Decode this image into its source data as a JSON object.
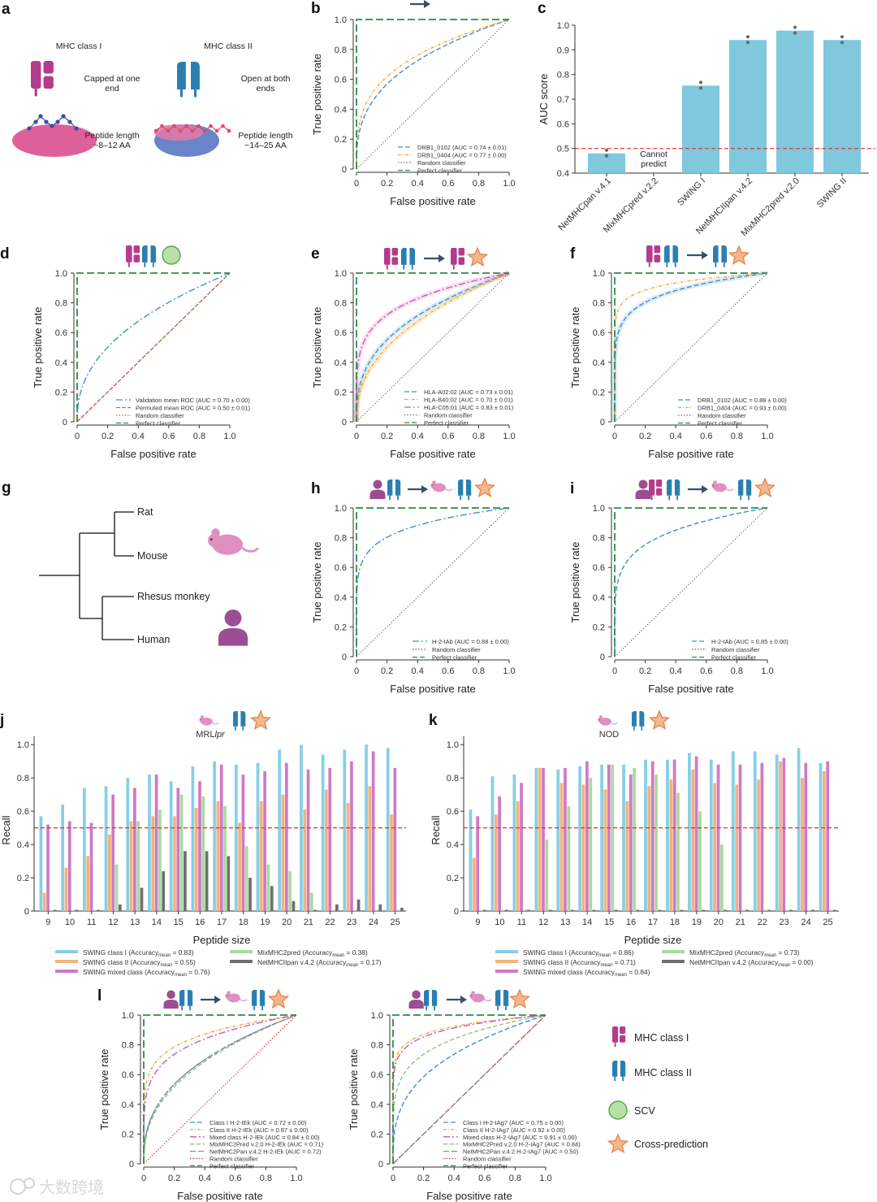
{
  "colors": {
    "classI": "#b43c8c",
    "classII": "#2b7fb0",
    "arrow": "#3d4f66",
    "star_fill": "#f6b58a",
    "star_stroke": "#e08a52",
    "scv_fill": "#b8e0a6",
    "scv_stroke": "#5aa34a",
    "mouse": "#e08fc2",
    "human": "#9c4d93",
    "random": "#777777",
    "perfect": "#2f8a4a",
    "threshold": "#e03030",
    "bar_c": "#7fc8dd",
    "barI": "#86cfe6",
    "barII": "#f3b27a",
    "barMixed": "#cf79c5",
    "barMix2": "#a8dba0",
    "barNet": "#6f6f6f"
  },
  "axis_text": {
    "tpr": "True positive rate",
    "fpr": "False positive rate",
    "auc_score": "AUC score",
    "recall": "Recall",
    "peptide_size": "Peptide size",
    "roc_ticks": [
      "0",
      "0.2",
      "0.4",
      "0.6",
      "0.8",
      "1.0"
    ],
    "auc_ticks": [
      "0.4",
      "0.5",
      "0.6",
      "0.7",
      "0.8",
      "0.9",
      "1.0"
    ]
  },
  "panel_a": {
    "label": "a",
    "class1_title": "MHC class I",
    "class1_desc": "Capped at one end",
    "class1_len": "Peptide length ~8–12 AA",
    "class2_title": "MHC class II",
    "class2_desc": "Open at both ends",
    "class2_len": "Peptide length ~14–25 AA"
  },
  "panel_g": {
    "label": "g",
    "leaves": [
      "Rat",
      "Mouse",
      "Rhesus monkey",
      "Human"
    ]
  },
  "key": {
    "mhc1": "MHC class I",
    "mhc2": "MHC class II",
    "scv": "SCV",
    "cross": "Cross-prediction"
  },
  "watermark": "大数跨境",
  "chart_data": [
    {
      "id": "b",
      "label": "b",
      "type": "line",
      "xlabel": "False positive rate",
      "ylabel": "True positive rate",
      "xlim": [
        0,
        1
      ],
      "ylim": [
        0,
        1
      ],
      "series": [
        {
          "name": "DRB1_0102 (AUC = 0.74 ± 0.01)",
          "auc": 0.74,
          "color": "#3d8fd0",
          "dash": "6,3"
        },
        {
          "name": "DRB1_0404 (AUC = 0.77 ± 0.00)",
          "auc": 0.77,
          "color": "#f5a623",
          "dash": "4,2,1,2"
        },
        {
          "name": "Random classifier",
          "ref": "random"
        },
        {
          "name": "Perfect classifier",
          "ref": "perfect"
        }
      ]
    },
    {
      "id": "c",
      "label": "c",
      "type": "bar",
      "ylabel": "AUC score",
      "ylim": [
        0.4,
        1.0
      ],
      "threshold": 0.5,
      "categories": [
        "NetMHCpan v.4.1",
        "MixMHCpred v.2.2",
        "SWING I",
        "NetMHCIIpan v.4.2",
        "MixMHC2pred v.2.0",
        "SWING II"
      ],
      "values": [
        0.48,
        null,
        0.755,
        0.94,
        0.978,
        0.94
      ],
      "annotation": "Cannot predict"
    },
    {
      "id": "d",
      "label": "d",
      "type": "line",
      "xlabel": "False positive rate",
      "ylabel": "True positive rate",
      "xlim": [
        0,
        1
      ],
      "ylim": [
        0,
        1
      ],
      "series": [
        {
          "name": "Validation mean ROC (AUC = 0.70 ± 0.00)",
          "auc": 0.7,
          "color": "#3d8fd0",
          "dash": "8,3,2,3"
        },
        {
          "name": "Permuted mean ROC (AUC = 0.50 ± 0.01)",
          "auc": 0.5,
          "color": "#d9673c",
          "dash": "5,2"
        },
        {
          "name": "Random classifier",
          "ref": "random"
        },
        {
          "name": "Perfect classifier",
          "ref": "perfect"
        }
      ]
    },
    {
      "id": "e",
      "label": "e",
      "type": "line",
      "xlabel": "False positive rate",
      "ylabel": "True positive rate",
      "xlim": [
        0,
        1
      ],
      "ylim": [
        0,
        1
      ],
      "series": [
        {
          "name": "HLA-A02:02 (AUC = 0.73 ± 0.01)",
          "auc": 0.73,
          "color": "#3d8fd0",
          "dash": "6,3"
        },
        {
          "name": "HLA-B40:02 (AUC = 0.70 ± 0.01)",
          "auc": 0.7,
          "color": "#f5a623",
          "dash": "4,2,1,2"
        },
        {
          "name": "HLA-C05:01 (AUC = 0.83 ± 0.01)",
          "auc": 0.83,
          "color": "#d955b5",
          "dash": "8,3,2,3"
        },
        {
          "name": "Random classifier",
          "ref": "random"
        },
        {
          "name": "Perfect classifier",
          "ref": "perfect"
        }
      ]
    },
    {
      "id": "f",
      "label": "f",
      "type": "line",
      "xlabel": "False positive rate",
      "ylabel": "True positive rate",
      "xlim": [
        0,
        1
      ],
      "ylim": [
        0,
        1
      ],
      "series": [
        {
          "name": "DRB1_0102 (AUC = 0.88 ± 0.00)",
          "auc": 0.88,
          "color": "#3d8fd0",
          "dash": "6,3"
        },
        {
          "name": "DRB1_0404 (AUC = 0.93 ± 0.00)",
          "auc": 0.93,
          "color": "#f5a623",
          "dash": "4,2,1,2"
        },
        {
          "name": "Random classifier",
          "ref": "random"
        },
        {
          "name": "Perfect classifier",
          "ref": "perfect"
        }
      ]
    },
    {
      "id": "h",
      "label": "h",
      "type": "line",
      "xlabel": "False positive rate",
      "ylabel": "True positive rate",
      "xlim": [
        0,
        1
      ],
      "ylim": [
        0,
        1
      ],
      "series": [
        {
          "name": "H-2-IAb (AUC = 0.88 ± 0.00)",
          "auc": 0.88,
          "color": "#3d8fd0",
          "dash": "8,3,2,3"
        },
        {
          "name": "Random classifier",
          "ref": "random"
        },
        {
          "name": "Perfect classifier",
          "ref": "perfect"
        }
      ]
    },
    {
      "id": "i",
      "label": "i",
      "type": "line",
      "xlabel": "False positive rate",
      "ylabel": "True positive rate",
      "xlim": [
        0,
        1
      ],
      "ylim": [
        0,
        1
      ],
      "series": [
        {
          "name": "H-2-IAb (AUC = 0.85 ± 0.00)",
          "auc": 0.85,
          "color": "#3d8fd0",
          "dash": "6,3"
        },
        {
          "name": "Random classifier",
          "ref": "random"
        },
        {
          "name": "Perfect classifier",
          "ref": "perfect"
        }
      ]
    },
    {
      "id": "j",
      "label": "j",
      "type": "bar",
      "subtitle": "MRL",
      "subtitle_italic": "lpr",
      "xlabel": "Peptide size",
      "ylabel": "Recall",
      "ylim": [
        0,
        1.05
      ],
      "threshold": 0.5,
      "categories": [
        "9",
        "10",
        "11",
        "12",
        "13",
        "14",
        "15",
        "16",
        "17",
        "18",
        "19",
        "20",
        "21",
        "22",
        "23",
        "24",
        "25"
      ],
      "series": [
        {
          "name": "SWING class I (Accuracy",
          "sub": "mean",
          "suffix": " = 0.83)",
          "key": "barI",
          "values": [
            0.57,
            0.64,
            0.74,
            0.75,
            0.8,
            0.82,
            0.78,
            0.87,
            0.9,
            0.88,
            0.89,
            0.97,
            1.0,
            0.94,
            0.97,
            1.0,
            0.98
          ]
        },
        {
          "name": "SWING class II (Accuracy",
          "sub": "mean",
          "suffix": " = 0.55)",
          "key": "barII",
          "values": [
            0.11,
            0.26,
            0.33,
            0.46,
            0.54,
            0.57,
            0.57,
            0.62,
            0.66,
            0.53,
            0.66,
            0.7,
            0.61,
            0.73,
            0.65,
            0.75,
            0.58
          ]
        },
        {
          "name": "SWING mixed class (Accuracy",
          "sub": "mean",
          "suffix": " = 0.76)",
          "key": "barMixed",
          "values": [
            0.52,
            0.54,
            0.53,
            0.7,
            0.74,
            0.82,
            0.74,
            0.78,
            0.88,
            0.82,
            0.84,
            0.89,
            0.85,
            0.86,
            0.9,
            0.96,
            0.86
          ]
        },
        {
          "name": "MixMHC2pred (Accuracy",
          "sub": "mean",
          "suffix": " = 0.38)",
          "key": "barMix2",
          "values": [
            0.0,
            0.0,
            0.0,
            0.28,
            0.54,
            0.61,
            0.7,
            0.69,
            0.63,
            0.39,
            0.28,
            0.24,
            0.11,
            0.0,
            0.0,
            0.0,
            0.0
          ]
        },
        {
          "name": "NetMHCIIpan v.4.2 (Accuracy",
          "sub": "mean",
          "suffix": " = 0.17)",
          "key": "barNet",
          "values": [
            0.0,
            0.0,
            0.0,
            0.04,
            0.14,
            0.24,
            0.36,
            0.36,
            0.33,
            0.2,
            0.15,
            0.06,
            0.0,
            0.04,
            0.07,
            0.04,
            0.02
          ]
        }
      ]
    },
    {
      "id": "k",
      "label": "k",
      "type": "bar",
      "subtitle": "NOD",
      "xlabel": "Peptide size",
      "ylabel": "Recall",
      "ylim": [
        0,
        1.05
      ],
      "threshold": 0.5,
      "categories": [
        "9",
        "10",
        "11",
        "12",
        "13",
        "14",
        "15",
        "16",
        "17",
        "18",
        "19",
        "20",
        "21",
        "22",
        "23",
        "24",
        "25"
      ],
      "series": [
        {
          "name": "SWING class I (Accuracy",
          "sub": "mean",
          "suffix": " = 0.86)",
          "key": "barI",
          "values": [
            0.61,
            0.81,
            0.82,
            0.86,
            0.85,
            0.87,
            0.88,
            0.88,
            0.91,
            0.91,
            0.95,
            0.91,
            0.96,
            0.96,
            0.94,
            0.98,
            0.89
          ]
        },
        {
          "name": "SWING class II (Accuracy",
          "sub": "mean",
          "suffix": " = 0.71)",
          "key": "barII",
          "values": [
            0.32,
            0.58,
            0.66,
            0.86,
            0.77,
            0.76,
            0.73,
            0.66,
            0.75,
            0.79,
            0.85,
            0.77,
            0.76,
            0.79,
            0.9,
            0.8,
            0.84
          ]
        },
        {
          "name": "SWING mixed class (Accuracy",
          "sub": "mean",
          "suffix": " = 0.84)",
          "key": "barMixed",
          "values": [
            0.57,
            0.69,
            0.77,
            0.86,
            0.86,
            0.9,
            0.88,
            0.82,
            0.9,
            0.91,
            0.93,
            0.88,
            0.88,
            0.89,
            0.92,
            0.89,
            0.9
          ]
        },
        {
          "name": "MixMHC2pred (Accuracy",
          "sub": "mean",
          "suffix": " = 0.73)",
          "key": "barMix2",
          "values": [
            0.0,
            0.0,
            0.0,
            0.43,
            0.63,
            0.8,
            0.88,
            0.86,
            0.82,
            0.71,
            0.6,
            0.4,
            0.0,
            0.0,
            0.0,
            0.0,
            0.0
          ]
        },
        {
          "name": "NetMHCIIpan v.4.2 (Accuracy",
          "sub": "mean",
          "suffix": " = 0.00)",
          "key": "barNet",
          "values": [
            0,
            0,
            0,
            0,
            0,
            0,
            0,
            0,
            0,
            0,
            0,
            0,
            0,
            0,
            0,
            0,
            0
          ]
        }
      ]
    },
    {
      "id": "l1",
      "label": "l",
      "type": "line",
      "xlabel": "False positive rate",
      "ylabel": "True positive rate",
      "xlim": [
        0,
        1
      ],
      "ylim": [
        0,
        1
      ],
      "series": [
        {
          "name": "Class I H-2-IEk (AUC = 0.72 ± 0.00)",
          "auc": 0.72,
          "color": "#3d8fd0",
          "dash": "6,3"
        },
        {
          "name": "Class II H-2-IEk (AUC = 0.87 ± 0.00)",
          "auc": 0.87,
          "color": "#f5a623",
          "dash": "4,2,1,2"
        },
        {
          "name": "Mixed class H-2-IEk (AUC = 0.84 ± 0.00)",
          "auc": 0.84,
          "color": "#c25bc4",
          "dash": "8,3,2,3"
        },
        {
          "name": "MixMHC2Pred v.2.0 H-2-IEk (AUC = 0.71)",
          "auc": 0.71,
          "color": "#8cc47f",
          "dash": "5,3"
        },
        {
          "name": "NetMHC2Pan v.4.2 H-2-IEk (AUC = 0.72)",
          "auc": 0.72,
          "color": "#8a8a8a",
          "dash": "7,3"
        },
        {
          "name": "Random classifier",
          "ref": "random",
          "color": "#e03030"
        },
        {
          "name": "Perfect classifier",
          "ref": "perfect"
        }
      ]
    },
    {
      "id": "l2",
      "label": "",
      "type": "line",
      "xlabel": "False positive rate",
      "ylabel": "True positive rate",
      "xlim": [
        0,
        1
      ],
      "ylim": [
        0,
        1
      ],
      "series": [
        {
          "name": "Class I H-2-IAg7 (AUC = 0.75 ± 0.00)",
          "auc": 0.75,
          "color": "#3d8fd0",
          "dash": "6,3"
        },
        {
          "name": "Class II H-2-IAg7 (AUC = 0.92 ± 0.00)",
          "auc": 0.92,
          "color": "#f5a623",
          "dash": "4,2,1,2"
        },
        {
          "name": "Mixed class H-2-IAg7 (AUC = 0.91 ± 0.00)",
          "auc": 0.91,
          "color": "#c25bc4",
          "dash": "8,3,2,3"
        },
        {
          "name": "MixMHC2Pred v.2.0 H-2-IAg7 (AUC = 0.84)",
          "auc": 0.84,
          "color": "#8cc47f",
          "dash": "5,3"
        },
        {
          "name": "NetMHC2Pan v.4.2 H-2-IAg7 (AUC = 0.50)",
          "auc": 0.5,
          "color": "#8a8a8a",
          "dash": "7,3"
        },
        {
          "name": "Random classifier",
          "ref": "random",
          "color": "#e03030"
        },
        {
          "name": "Perfect classifier",
          "ref": "perfect"
        }
      ]
    }
  ]
}
